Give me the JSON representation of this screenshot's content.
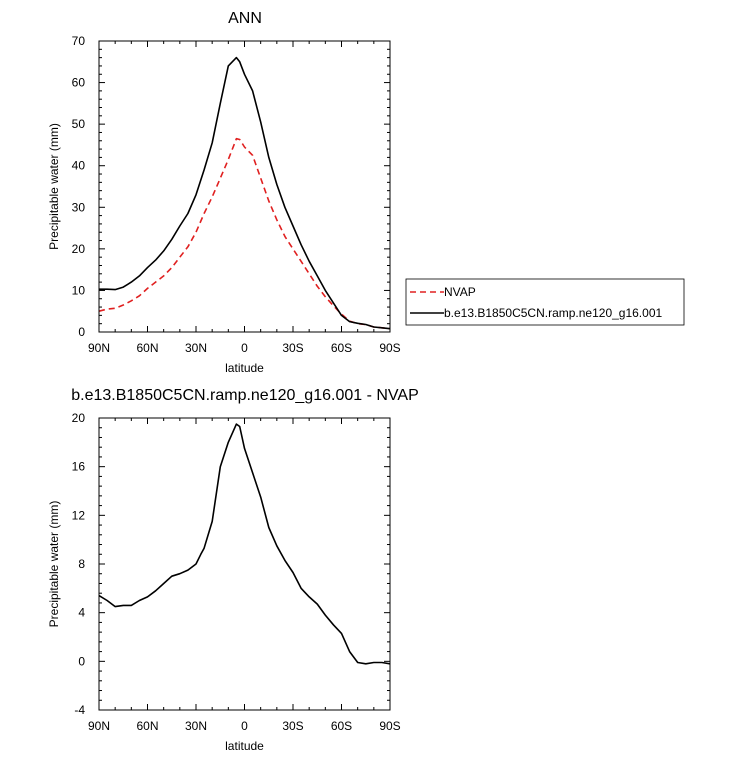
{
  "chart_data": [
    {
      "type": "line",
      "title": "ANN",
      "xlabel": "latitude",
      "ylabel": "Precipitable water (mm)",
      "xlim": [
        90,
        -90
      ],
      "ylim": [
        0,
        70
      ],
      "x_tick_values": [
        90,
        60,
        30,
        0,
        -30,
        -60,
        -90
      ],
      "x_tick_labels": [
        "90N",
        "60N",
        "30N",
        "0",
        "30S",
        "60S",
        "90S"
      ],
      "y_tick_values": [
        0,
        10,
        20,
        30,
        40,
        50,
        60,
        70
      ],
      "y_tick_labels": [
        "0",
        "10",
        "20",
        "30",
        "40",
        "50",
        "60",
        "70"
      ],
      "legend": {
        "placement": "right",
        "entries": [
          {
            "label": "NVAP",
            "color": "#e02020",
            "style": "dashed"
          },
          {
            "label": "b.e13.B1850C5CN.ramp.ne120_g16.001",
            "color": "#000000",
            "style": "solid"
          }
        ]
      },
      "series": [
        {
          "name": "NVAP",
          "color": "#e02020",
          "style": "dashed",
          "x": [
            90,
            85,
            80,
            75,
            70,
            65,
            60,
            55,
            50,
            45,
            40,
            35,
            30,
            25,
            20,
            15,
            10,
            5,
            3,
            0,
            -5,
            -10,
            -15,
            -20,
            -25,
            -30,
            -35,
            -40,
            -45,
            -50,
            -55,
            -60,
            -65,
            -70,
            -75,
            -80,
            -85,
            -90
          ],
          "y": [
            5,
            5.5,
            5.7,
            6.5,
            7.5,
            8.7,
            10.5,
            12,
            13.5,
            15.5,
            18,
            20.5,
            24,
            28.5,
            32.5,
            37,
            41.5,
            46.5,
            46.3,
            44.5,
            42.5,
            37,
            31.5,
            27,
            23,
            20,
            17,
            14,
            11,
            8.5,
            6.3,
            4.3,
            2.6,
            2,
            1.8,
            1.2,
            1,
            0.8
          ]
        },
        {
          "name": "b.e13.B1850C5CN.ramp.ne120_g16.001",
          "color": "#000000",
          "style": "solid",
          "x": [
            90,
            85,
            80,
            75,
            70,
            65,
            60,
            55,
            50,
            45,
            40,
            35,
            30,
            25,
            20,
            15,
            10,
            5,
            3,
            0,
            -5,
            -10,
            -15,
            -20,
            -25,
            -30,
            -35,
            -40,
            -45,
            -50,
            -55,
            -60,
            -65,
            -70,
            -75,
            -80,
            -85,
            -90
          ],
          "y": [
            10.3,
            10.3,
            10.2,
            10.8,
            12,
            13.5,
            15.5,
            17.3,
            19.5,
            22.3,
            25.5,
            28.5,
            33,
            39,
            45.5,
            55,
            64,
            66,
            65,
            62,
            58,
            50.5,
            42,
            35.5,
            30,
            25.5,
            21,
            17,
            13.5,
            10,
            7,
            4,
            2.5,
            2.1,
            1.8,
            1.2,
            1,
            0.8
          ]
        }
      ]
    },
    {
      "type": "line",
      "title": "b.e13.B1850C5CN.ramp.ne120_g16.001 - NVAP",
      "xlabel": "latitude",
      "ylabel": "Precipitable water (mm)",
      "xlim": [
        90,
        -90
      ],
      "ylim": [
        -4,
        20
      ],
      "x_tick_values": [
        90,
        60,
        30,
        0,
        -30,
        -60,
        -90
      ],
      "x_tick_labels": [
        "90N",
        "60N",
        "30N",
        "0",
        "30S",
        "60S",
        "90S"
      ],
      "y_tick_values": [
        -4,
        0,
        4,
        8,
        12,
        16,
        20
      ],
      "y_tick_labels": [
        "-4",
        "0",
        "4",
        "8",
        "12",
        "16",
        "20"
      ],
      "series": [
        {
          "color": "#000000",
          "style": "solid",
          "x": [
            90,
            85,
            80,
            75,
            70,
            65,
            60,
            55,
            50,
            45,
            40,
            35,
            30,
            27,
            25,
            20,
            15,
            10,
            5,
            3,
            0,
            -5,
            -10,
            -15,
            -20,
            -25,
            -30,
            -35,
            -40,
            -45,
            -50,
            -55,
            -60,
            -65,
            -70,
            -75,
            -80,
            -85,
            -90
          ],
          "y": [
            5.4,
            5,
            4.5,
            4.6,
            4.6,
            5,
            5.3,
            5.8,
            6.4,
            7,
            7.2,
            7.5,
            8,
            8.8,
            9.3,
            11.5,
            16,
            18,
            19.5,
            19.3,
            17.5,
            15.5,
            13.5,
            11,
            9.5,
            8.3,
            7.3,
            6,
            5.3,
            4.7,
            3.8,
            3,
            2.3,
            0.8,
            -0.1,
            -0.2,
            -0.1,
            -0.1,
            -0.2
          ]
        }
      ]
    }
  ]
}
